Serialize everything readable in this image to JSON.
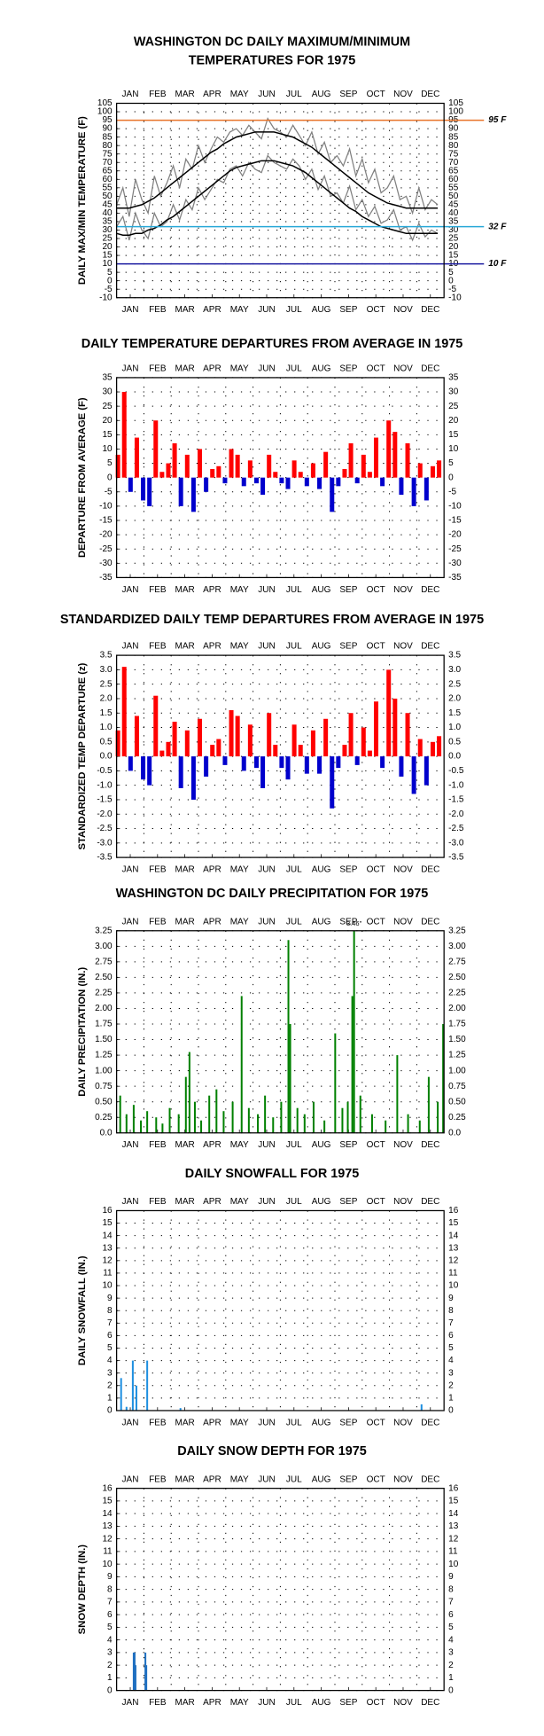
{
  "chart_data": [
    {
      "type": "line",
      "title": [
        "WASHINGTON DC DAILY MAXIMUM/MINIMUM",
        "TEMPERATURES FOR 1975"
      ],
      "y_label": "DAILY MAX/MIN TEMPERATURE (F)",
      "months": [
        "JAN",
        "FEB",
        "MAR",
        "APR",
        "MAY",
        "JUN",
        "JUL",
        "AUG",
        "SEP",
        "OCT",
        "NOV",
        "DEC"
      ],
      "xlim": [
        1,
        365
      ],
      "x": [
        1,
        8,
        15,
        22,
        29,
        36,
        43,
        50,
        57,
        64,
        71,
        78,
        85,
        92,
        99,
        106,
        113,
        120,
        127,
        134,
        141,
        148,
        155,
        162,
        169,
        176,
        183,
        190,
        197,
        204,
        211,
        218,
        225,
        232,
        239,
        246,
        253,
        260,
        267,
        274,
        281,
        288,
        295,
        302,
        309,
        316,
        323,
        330,
        337,
        344,
        351,
        358
      ],
      "series": [
        {
          "color": "#808080",
          "values": [
            45,
            55,
            38,
            60,
            48,
            40,
            62,
            50,
            58,
            68,
            55,
            72,
            66,
            80,
            70,
            78,
            85,
            82,
            88,
            90,
            86,
            92,
            88,
            84,
            96,
            90,
            88,
            85,
            92,
            86,
            80,
            88,
            75,
            82,
            70,
            74,
            68,
            78,
            62,
            72,
            58,
            66,
            52,
            55,
            62,
            48,
            50,
            40,
            55,
            42,
            48,
            45
          ]
        },
        {
          "color": "#808080",
          "values": [
            32,
            38,
            24,
            40,
            30,
            25,
            40,
            32,
            35,
            45,
            36,
            48,
            42,
            55,
            48,
            54,
            60,
            58,
            66,
            68,
            62,
            70,
            66,
            64,
            74,
            70,
            68,
            66,
            72,
            68,
            60,
            66,
            54,
            62,
            50,
            52,
            46,
            56,
            42,
            48,
            38,
            44,
            34,
            36,
            42,
            30,
            32,
            24,
            34,
            26,
            30,
            28
          ]
        },
        {
          "color": "#000000",
          "values": [
            43,
            43,
            43,
            44,
            45,
            47,
            49,
            52,
            55,
            58,
            61,
            64,
            67,
            70,
            73,
            76,
            78,
            81,
            83,
            85,
            86,
            87,
            88,
            88,
            88,
            88,
            87,
            86,
            85,
            83,
            81,
            79,
            76,
            73,
            70,
            67,
            64,
            61,
            58,
            55,
            52,
            50,
            48,
            46,
            45,
            44,
            43,
            43,
            43,
            43,
            43,
            43
          ]
        },
        {
          "color": "#000000",
          "values": [
            28,
            27,
            27,
            28,
            28,
            30,
            31,
            33,
            36,
            38,
            41,
            44,
            47,
            50,
            53,
            56,
            59,
            62,
            65,
            67,
            68,
            69,
            70,
            71,
            71,
            71,
            70,
            69,
            68,
            66,
            64,
            61,
            58,
            55,
            52,
            49,
            46,
            43,
            41,
            38,
            36,
            34,
            32,
            31,
            30,
            29,
            28,
            28,
            28,
            28,
            28,
            28
          ]
        }
      ],
      "reference_lines": [
        {
          "value": 95,
          "label": "95 F",
          "color": "#e8742a"
        },
        {
          "value": 32,
          "label": "32 F",
          "color": "#29a8d8"
        },
        {
          "value": 10,
          "label": "10 F",
          "color": "#1a1aa0"
        }
      ],
      "ylim": [
        -10,
        105
      ],
      "yticks": [
        -10,
        -5,
        0,
        5,
        10,
        15,
        20,
        25,
        30,
        35,
        40,
        45,
        50,
        55,
        60,
        65,
        70,
        75,
        80,
        85,
        90,
        95,
        100,
        105
      ],
      "grid": true
    },
    {
      "type": "bar",
      "title": [
        "DAILY TEMPERATURE DEPARTURES FROM AVERAGE IN 1975"
      ],
      "y_label": "DEPARTURE FROM AVERAGE (F)",
      "months": [
        "JAN",
        "FEB",
        "MAR",
        "APR",
        "MAY",
        "JUN",
        "JUL",
        "AUG",
        "SEP",
        "OCT",
        "NOV",
        "DEC"
      ],
      "xlim": [
        1,
        365
      ],
      "x": [
        1,
        8,
        15,
        22,
        29,
        36,
        43,
        50,
        57,
        64,
        71,
        78,
        85,
        92,
        99,
        106,
        113,
        120,
        127,
        134,
        141,
        148,
        155,
        162,
        169,
        176,
        183,
        190,
        197,
        204,
        211,
        218,
        225,
        232,
        239,
        246,
        253,
        260,
        267,
        274,
        281,
        288,
        295,
        302,
        309,
        316,
        323,
        330,
        337,
        344,
        351,
        358
      ],
      "series": [
        {
          "color": "#ff0000",
          "negative_color": "#0000cc",
          "values": [
            8,
            30,
            -5,
            14,
            -8,
            -10,
            20,
            2,
            5,
            12,
            -10,
            8,
            -12,
            10,
            -5,
            3,
            4,
            -2,
            10,
            8,
            -3,
            6,
            -2,
            -6,
            8,
            2,
            -2,
            -4,
            6,
            2,
            -3,
            5,
            -4,
            9,
            -12,
            -3,
            3,
            12,
            -2,
            8,
            2,
            14,
            -3,
            20,
            16,
            -6,
            12,
            -10,
            5,
            -8,
            4,
            6
          ]
        }
      ],
      "ylim": [
        -35,
        35
      ],
      "yticks": [
        -35,
        -30,
        -25,
        -20,
        -15,
        -10,
        -5,
        0,
        5,
        10,
        15,
        20,
        25,
        30,
        35
      ],
      "grid": true
    },
    {
      "type": "bar",
      "title": [
        "STANDARDIZED DAILY TEMP DEPARTURES FROM AVERAGE IN 1975"
      ],
      "y_label": "STANDARDIZED TEMP DEPARTURE (z)",
      "months": [
        "JAN",
        "FEB",
        "MAR",
        "APR",
        "MAY",
        "JUN",
        "JUL",
        "AUG",
        "SEP",
        "OCT",
        "NOV",
        "DEC"
      ],
      "xlim": [
        1,
        365
      ],
      "x": [
        1,
        8,
        15,
        22,
        29,
        36,
        43,
        50,
        57,
        64,
        71,
        78,
        85,
        92,
        99,
        106,
        113,
        120,
        127,
        134,
        141,
        148,
        155,
        162,
        169,
        176,
        183,
        190,
        197,
        204,
        211,
        218,
        225,
        232,
        239,
        246,
        253,
        260,
        267,
        274,
        281,
        288,
        295,
        302,
        309,
        316,
        323,
        330,
        337,
        344,
        351,
        358
      ],
      "series": [
        {
          "color": "#ff0000",
          "negative_color": "#0000cc",
          "values": [
            0.9,
            3.1,
            -0.5,
            1.4,
            -0.8,
            -1.0,
            2.1,
            0.2,
            0.5,
            1.2,
            -1.1,
            0.9,
            -1.5,
            1.3,
            -0.7,
            0.4,
            0.6,
            -0.3,
            1.6,
            1.4,
            -0.5,
            1.1,
            -0.4,
            -1.1,
            1.5,
            0.4,
            -0.4,
            -0.8,
            1.1,
            0.4,
            -0.6,
            0.9,
            -0.6,
            1.3,
            -1.8,
            -0.4,
            0.4,
            1.5,
            -0.3,
            1.0,
            0.2,
            1.9,
            -0.4,
            3.0,
            2.0,
            -0.7,
            1.5,
            -1.3,
            0.6,
            -1.0,
            0.5,
            0.7
          ]
        }
      ],
      "ylim": [
        -3.5,
        3.5
      ],
      "yticks": [
        -3.5,
        {
          "value": -3,
          "label": "-3.0"
        },
        -2.5,
        {
          "value": -2,
          "label": "-2.0"
        },
        -1.5,
        {
          "value": -1,
          "label": "-1.0"
        },
        -0.5,
        {
          "value": 0,
          "label": "0.0"
        },
        0.5,
        {
          "value": 1,
          "label": "1.0"
        },
        1.5,
        {
          "value": 2,
          "label": "2.0"
        },
        2.5,
        {
          "value": 3,
          "label": "3.0"
        },
        3.5
      ],
      "grid": true
    },
    {
      "type": "bar",
      "title": [
        "WASHINGTON DC DAILY PRECIPITATION FOR 1975"
      ],
      "y_label": "DAILY PRECIPITATION (IN.)",
      "months": [
        "JAN",
        "FEB",
        "MAR",
        "APR",
        "MAY",
        "JUN",
        "JUL",
        "AUG",
        "SEP",
        "OCT",
        "NOV",
        "DEC"
      ],
      "xlim": [
        1,
        365
      ],
      "x": [
        5,
        12,
        20,
        28,
        35,
        45,
        52,
        60,
        70,
        78,
        82,
        88,
        95,
        104,
        112,
        120,
        130,
        140,
        148,
        158,
        166,
        175,
        184,
        192,
        194,
        202,
        210,
        220,
        232,
        244,
        252,
        258,
        263,
        265,
        272,
        285,
        300,
        313,
        325,
        338,
        348,
        358,
        364
      ],
      "series": [
        {
          "color": "#008000",
          "values": [
            0.6,
            0.3,
            0.45,
            0.2,
            0.35,
            0.25,
            0.15,
            0.4,
            0.3,
            0.9,
            1.3,
            0.5,
            0.2,
            0.6,
            0.7,
            0.35,
            0.5,
            2.2,
            0.4,
            0.3,
            0.6,
            0.25,
            0.5,
            3.1,
            1.75,
            0.4,
            0.3,
            0.5,
            0.2,
            1.6,
            0.4,
            0.5,
            2.2,
            3.46,
            0.6,
            0.3,
            0.2,
            1.25,
            0.3,
            0.2,
            0.9,
            0.5,
            1.75
          ],
          "value_labels": [
            null,
            null,
            null,
            null,
            null,
            null,
            null,
            null,
            null,
            null,
            null,
            null,
            null,
            null,
            null,
            null,
            null,
            null,
            null,
            null,
            null,
            null,
            null,
            null,
            null,
            null,
            null,
            null,
            null,
            null,
            null,
            null,
            null,
            "3.46\"",
            null,
            null,
            null,
            null,
            null,
            null,
            null,
            null,
            null
          ]
        }
      ],
      "ylim": [
        0,
        3.25
      ],
      "yticks": [
        {
          "value": 0,
          "label": "0.0"
        },
        0.25,
        {
          "value": 0.5,
          "label": "0.50"
        },
        0.75,
        {
          "value": 1,
          "label": "1.00"
        },
        1.25,
        {
          "value": 1.5,
          "label": "1.50"
        },
        1.75,
        {
          "value": 2,
          "label": "2.00"
        },
        2.25,
        {
          "value": 2.5,
          "label": "2.50"
        },
        2.75,
        {
          "value": 3,
          "label": "3.00"
        },
        3.25
      ],
      "grid": true
    },
    {
      "type": "bar",
      "title": [
        "DAILY SNOWFALL FOR 1975"
      ],
      "y_label": "DAILY SNOWFALL (IN.)",
      "months": [
        "JAN",
        "FEB",
        "MAR",
        "APR",
        "MAY",
        "JUN",
        "JUL",
        "AUG",
        "SEP",
        "OCT",
        "NOV",
        "DEC"
      ],
      "xlim": [
        1,
        365
      ],
      "x": [
        6,
        12,
        19,
        23,
        35,
        72,
        340
      ],
      "series": [
        {
          "color": "#1e8fe0",
          "values": [
            2.6,
            0.3,
            4,
            2,
            4,
            0.2,
            0.5
          ]
        }
      ],
      "ylim": [
        0,
        16
      ],
      "yticks": [
        0,
        1,
        2,
        3,
        4,
        5,
        6,
        7,
        8,
        9,
        10,
        11,
        12,
        13,
        14,
        15,
        16
      ],
      "grid": true
    },
    {
      "type": "bar",
      "title": [
        "DAILY SNOW DEPTH FOR 1975"
      ],
      "y_label": "SNOW DEPTH (IN.)",
      "months": [
        "JAN",
        "FEB",
        "MAR",
        "APR",
        "MAY",
        "JUN",
        "JUL",
        "AUG",
        "SEP",
        "OCT",
        "NOV",
        "DEC"
      ],
      "xlim": [
        1,
        365
      ],
      "x": [
        20,
        21,
        22,
        33,
        34
      ],
      "series": [
        {
          "color": "#1e6fc0",
          "values": [
            3,
            3,
            2,
            3,
            2
          ]
        }
      ],
      "ylim": [
        0,
        16
      ],
      "yticks": [
        0,
        1,
        2,
        3,
        4,
        5,
        6,
        7,
        8,
        9,
        10,
        11,
        12,
        13,
        14,
        15,
        16
      ],
      "grid": true
    }
  ]
}
